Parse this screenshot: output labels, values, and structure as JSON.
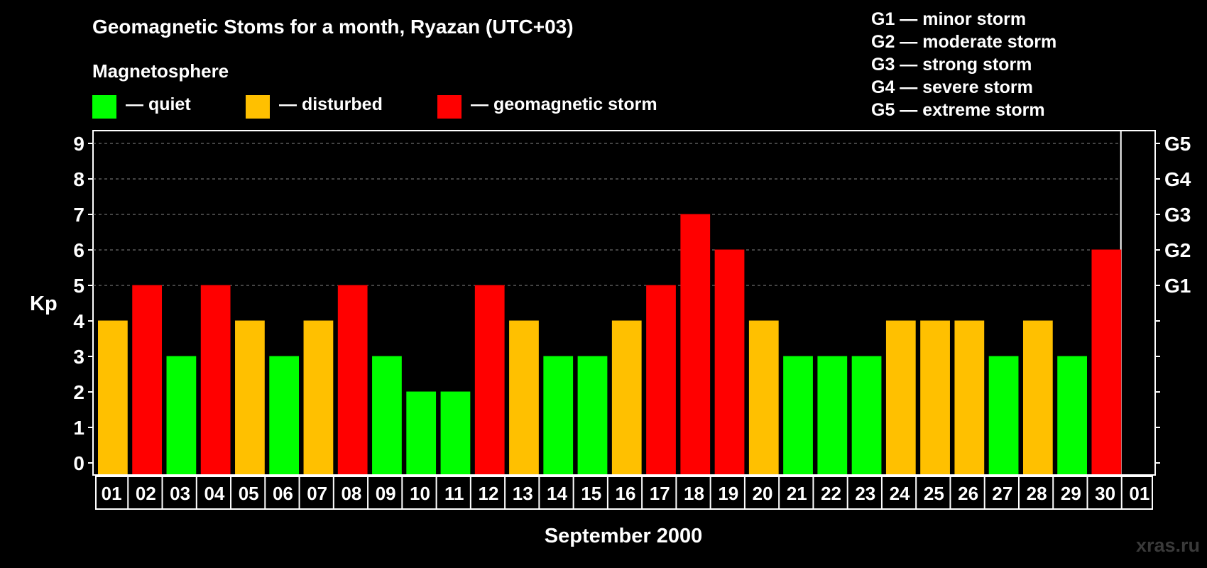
{
  "header": {
    "title": "Geomagnetic Stoms for a month, Ryazan (UTC+03)",
    "subtitle": "Magnetosphere"
  },
  "legend": {
    "items": [
      {
        "label": "— quiet",
        "color": "#00ff00"
      },
      {
        "label": "— disturbed",
        "color": "#ffc000"
      },
      {
        "label": "— geomagnetic storm",
        "color": "#ff0000"
      }
    ],
    "g_scale": [
      "G1 — minor storm",
      "G2 — moderate storm",
      "G3 — strong storm",
      "G4 — severe storm",
      "G5 — extreme storm"
    ]
  },
  "watermark": "xras.ru",
  "chart_data": {
    "type": "bar",
    "title": "Geomagnetic Stoms for a month, Ryazan (UTC+03)",
    "ylabel": "Kp",
    "xlabel": "September 2000",
    "ylim": [
      0,
      9
    ],
    "yticks": [
      "0",
      "1",
      "2",
      "3",
      "4",
      "5",
      "6",
      "7",
      "8",
      "9"
    ],
    "right_axis": [
      {
        "kp": 5,
        "label": "G1"
      },
      {
        "kp": 6,
        "label": "G2"
      },
      {
        "kp": 7,
        "label": "G3"
      },
      {
        "kp": 8,
        "label": "G4"
      },
      {
        "kp": 9,
        "label": "G5"
      }
    ],
    "gridlines_at": [
      5,
      6,
      7,
      8,
      9
    ],
    "categories": [
      "01",
      "02",
      "03",
      "04",
      "05",
      "06",
      "07",
      "08",
      "09",
      "10",
      "11",
      "12",
      "13",
      "14",
      "15",
      "16",
      "17",
      "18",
      "19",
      "20",
      "21",
      "22",
      "23",
      "24",
      "25",
      "26",
      "27",
      "28",
      "29",
      "30",
      "01"
    ],
    "values": [
      4,
      5,
      3,
      5,
      4,
      3,
      4,
      5,
      3,
      2,
      2,
      5,
      4,
      3,
      3,
      4,
      5,
      7,
      6,
      4,
      3,
      3,
      3,
      4,
      4,
      4,
      3,
      4,
      3,
      6,
      null
    ],
    "colors": {
      "quiet": "#00ff00",
      "disturbed": "#ffc000",
      "storm": "#ff0000"
    }
  }
}
